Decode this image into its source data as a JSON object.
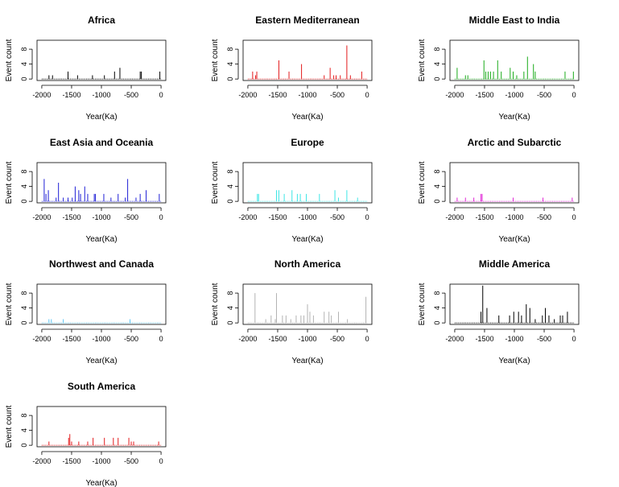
{
  "figure": {
    "xlabel": "Year(Ka)",
    "ylabel": "Event count"
  },
  "chart_data": [
    {
      "type": "bar",
      "title": "Africa",
      "color": "#000000",
      "xlabel": "Year(Ka)",
      "ylabel": "Event count",
      "xlim": [
        -2000,
        0
      ],
      "ylim": [
        0,
        10
      ],
      "xticks": [
        -2000,
        -1500,
        -1000,
        -500,
        0
      ],
      "yticks": [
        0,
        4,
        8
      ],
      "x": [
        -1880,
        -1820,
        -1560,
        -1400,
        -1150,
        -950,
        -780,
        -690,
        -350,
        -330,
        -20
      ],
      "values": [
        1,
        1,
        2,
        1,
        1,
        1,
        2,
        3,
        2,
        2,
        2
      ]
    },
    {
      "type": "bar",
      "title": "Eastern Mediterranean",
      "color": "#e31a1c",
      "xlabel": "Year(Ka)",
      "ylabel": "Event count",
      "xlim": [
        -2000,
        0
      ],
      "ylim": [
        0,
        10
      ],
      "xticks": [
        -2000,
        -1500,
        -1000,
        -500,
        0
      ],
      "yticks": [
        0,
        4,
        8
      ],
      "x": [
        -1920,
        -1870,
        -1850,
        -1480,
        -1310,
        -1100,
        -720,
        -620,
        -560,
        -520,
        -450,
        -340,
        -280,
        -90
      ],
      "values": [
        2,
        1,
        2,
        5,
        2,
        4,
        1,
        3,
        1,
        1,
        1,
        9,
        1,
        2
      ]
    },
    {
      "type": "bar",
      "title": "Middle East to India",
      "color": "#1aab1a",
      "xlabel": "Year(Ka)",
      "ylabel": "Event count",
      "xlim": [
        -2000,
        0
      ],
      "ylim": [
        0,
        10
      ],
      "xticks": [
        -2000,
        -1500,
        -1000,
        -500,
        0
      ],
      "yticks": [
        0,
        4,
        8
      ],
      "x": [
        -1960,
        -1820,
        -1780,
        -1510,
        -1480,
        -1440,
        -1400,
        -1350,
        -1280,
        -1220,
        -1070,
        -1020,
        -960,
        -840,
        -780,
        -680,
        -650,
        -150,
        -10
      ],
      "values": [
        3,
        1,
        1,
        5,
        2,
        2,
        2,
        2,
        5,
        2,
        3,
        2,
        1,
        2,
        6,
        4,
        2,
        2,
        2
      ]
    },
    {
      "type": "bar",
      "title": "East Asia and Oceania",
      "color": "#1f1fd6",
      "xlabel": "Year(Ka)",
      "ylabel": "Event count",
      "xlim": [
        -2000,
        0
      ],
      "ylim": [
        0,
        10
      ],
      "xticks": [
        -2000,
        -1500,
        -1000,
        -500,
        0
      ],
      "yticks": [
        0,
        4,
        8
      ],
      "x": [
        -1960,
        -1930,
        -1890,
        -1760,
        -1720,
        -1640,
        -1560,
        -1490,
        -1440,
        -1380,
        -1350,
        -1280,
        -1230,
        -1120,
        -1100,
        -960,
        -840,
        -720,
        -600,
        -560,
        -420,
        -350,
        -250,
        -30
      ],
      "values": [
        6,
        2,
        3,
        1,
        5,
        1,
        1,
        1,
        4,
        3,
        2,
        4,
        2,
        2,
        2,
        2,
        1,
        2,
        1,
        6,
        1,
        2,
        3,
        2
      ]
    },
    {
      "type": "bar",
      "title": "Europe",
      "color": "#3ee6e6",
      "xlabel": "Year(Ka)",
      "ylabel": "Event count",
      "xlim": [
        -2000,
        0
      ],
      "ylim": [
        0,
        10
      ],
      "xticks": [
        -2000,
        -1500,
        -1000,
        -500,
        0
      ],
      "yticks": [
        0,
        4,
        8
      ],
      "x": [
        -1840,
        -1820,
        -1520,
        -1480,
        -1390,
        -1260,
        -1170,
        -1120,
        -1020,
        -800,
        -540,
        -480,
        -340,
        -160
      ],
      "values": [
        2,
        2,
        3,
        3,
        2,
        3,
        2,
        2,
        2,
        2,
        3,
        1,
        3,
        1
      ]
    },
    {
      "type": "bar",
      "title": "Arctic and Subarctic",
      "color": "#e023d6",
      "xlabel": "Year(Ka)",
      "ylabel": "Event count",
      "xlim": [
        -2000,
        0
      ],
      "ylim": [
        0,
        10
      ],
      "xticks": [
        -2000,
        -1500,
        -1000,
        -500,
        0
      ],
      "yticks": [
        0,
        4,
        8
      ],
      "x": [
        -1960,
        -1820,
        -1680,
        -1560,
        -1540,
        -1020,
        -520,
        -30
      ],
      "values": [
        1,
        1,
        1,
        2,
        2,
        1,
        1,
        1
      ]
    },
    {
      "type": "bar",
      "title": "Northwest and Canada",
      "color": "#5ec7f5",
      "xlabel": "Year(Ka)",
      "ylabel": "Event count",
      "xlim": [
        -2000,
        0
      ],
      "ylim": [
        0,
        10
      ],
      "xticks": [
        -2000,
        -1500,
        -1000,
        -500,
        0
      ],
      "yticks": [
        0,
        4,
        8
      ],
      "x": [
        -1880,
        -1840,
        -1640,
        -520
      ],
      "values": [
        1,
        1,
        1,
        1
      ]
    },
    {
      "type": "bar",
      "title": "North America",
      "color": "#b3b3b3",
      "xlabel": "Year(Ka)",
      "ylabel": "Event count",
      "xlim": [
        -2000,
        0
      ],
      "ylim": [
        0,
        10
      ],
      "xticks": [
        -2000,
        -1500,
        -1000,
        -500,
        0
      ],
      "yticks": [
        0,
        4,
        8
      ],
      "x": [
        -1880,
        -1700,
        -1610,
        -1540,
        -1520,
        -1420,
        -1360,
        -1280,
        -1190,
        -1110,
        -1060,
        -1000,
        -960,
        -900,
        -720,
        -640,
        -600,
        -480,
        -330,
        -20
      ],
      "values": [
        8,
        1,
        2,
        1,
        8,
        2,
        2,
        1,
        2,
        2,
        2,
        5,
        3,
        2,
        3,
        3,
        2,
        3,
        1,
        7
      ]
    },
    {
      "type": "bar",
      "title": "Middle America",
      "color": "#000000",
      "xlabel": "Year(Ka)",
      "ylabel": "Event count",
      "xlim": [
        -2000,
        0
      ],
      "ylim": [
        0,
        10
      ],
      "xticks": [
        -2000,
        -1500,
        -1000,
        -500,
        0
      ],
      "yticks": [
        0,
        4,
        8
      ],
      "x": [
        -1560,
        -1530,
        -1460,
        -1260,
        -1080,
        -1010,
        -930,
        -880,
        -800,
        -740,
        -650,
        -530,
        -480,
        -420,
        -330,
        -230,
        -190,
        -110
      ],
      "values": [
        3,
        10,
        4,
        2,
        2,
        3,
        3,
        2,
        5,
        4,
        1,
        2,
        4,
        2,
        1,
        2,
        2,
        3
      ]
    },
    {
      "type": "bar",
      "title": "South America",
      "color": "#e31a1c",
      "xlabel": "Year(Ka)",
      "ylabel": "Event count",
      "xlim": [
        -2000,
        0
      ],
      "ylim": [
        0,
        10
      ],
      "xticks": [
        -2000,
        -1500,
        -1000,
        -500,
        0
      ],
      "yticks": [
        0,
        4,
        8
      ],
      "x": [
        -1880,
        -1550,
        -1530,
        -1500,
        -1380,
        -1230,
        -1140,
        -950,
        -800,
        -720,
        -540,
        -500,
        -460,
        -40
      ],
      "values": [
        1,
        2,
        3,
        1,
        1,
        1,
        2,
        2,
        2,
        2,
        2,
        1,
        1,
        1
      ]
    }
  ]
}
